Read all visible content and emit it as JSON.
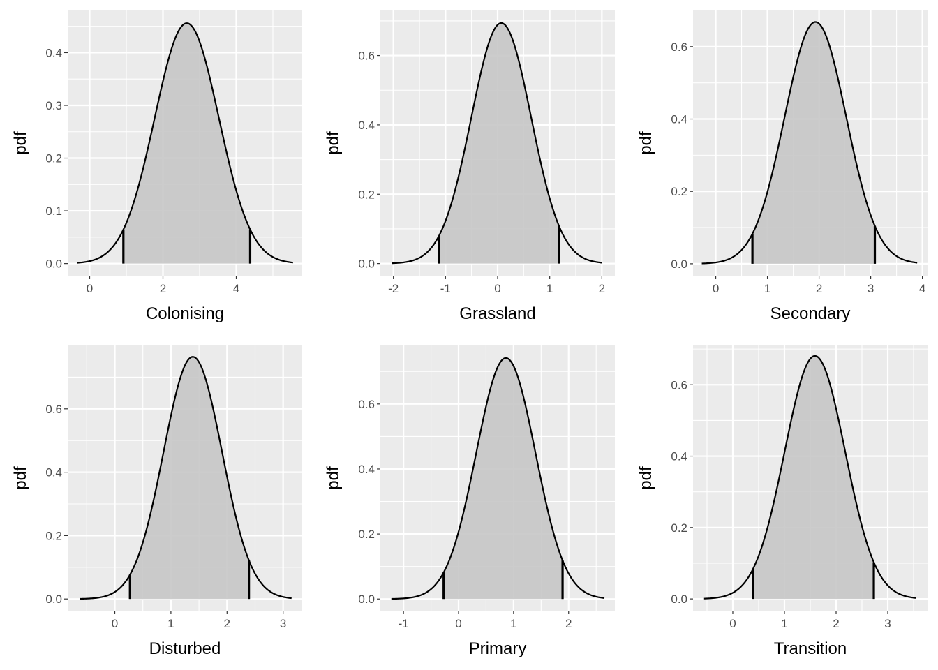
{
  "figure": {
    "panel_background": "#ebebeb",
    "grid_color": "#ffffff",
    "curve_color": "#000000",
    "fill_color": "#c6c6c6",
    "tick_text_color": "#4d4d4d"
  },
  "chart_data": [
    {
      "type": "area",
      "xlabel": "Colonising",
      "ylabel": "pdf",
      "mean": 2.65,
      "sd": 0.875,
      "ci": [
        0.92,
        4.38
      ],
      "xlim": [
        -0.6,
        5.8
      ],
      "ylim": [
        -0.023,
        0.48
      ],
      "x_ticks": [
        0,
        2,
        4
      ],
      "x_tick_labels": [
        "0",
        "2",
        "4"
      ],
      "y_ticks": [
        0.0,
        0.1,
        0.2,
        0.3,
        0.4
      ],
      "y_tick_labels": [
        "0.0",
        "0.1",
        "0.2",
        "0.3",
        "0.4"
      ],
      "curve_range": [
        -0.35,
        5.55
      ]
    },
    {
      "type": "area",
      "xlabel": "Grassland",
      "ylabel": "pdf",
      "mean": 0.07,
      "sd": 0.575,
      "ci": [
        -1.13,
        1.18
      ],
      "xlim": [
        -2.25,
        2.25
      ],
      "ylim": [
        -0.035,
        0.73
      ],
      "x_ticks": [
        -2,
        -1,
        0,
        1,
        2
      ],
      "x_tick_labels": [
        "-2",
        "-1",
        "0",
        "1",
        "2"
      ],
      "y_ticks": [
        0.0,
        0.2,
        0.4,
        0.6
      ],
      "y_tick_labels": [
        "0.0",
        "0.2",
        "0.4",
        "0.6"
      ],
      "curve_range": [
        -2.03,
        2.0
      ]
    },
    {
      "type": "area",
      "xlabel": "Secondary",
      "ylabel": "pdf",
      "mean": 1.93,
      "sd": 0.597,
      "ci": [
        0.71,
        3.08
      ],
      "xlim": [
        -0.44,
        4.1
      ],
      "ylim": [
        -0.033,
        0.7
      ],
      "x_ticks": [
        0,
        1,
        2,
        3,
        4
      ],
      "x_tick_labels": [
        "0",
        "1",
        "2",
        "3",
        "4"
      ],
      "y_ticks": [
        0.0,
        0.2,
        0.4,
        0.6
      ],
      "y_tick_labels": [
        "0.0",
        "0.2",
        "0.4",
        "0.6"
      ],
      "curve_range": [
        -0.27,
        3.9
      ]
    },
    {
      "type": "area",
      "xlabel": "Disturbed",
      "ylabel": "pdf",
      "mean": 1.39,
      "sd": 0.522,
      "ci": [
        0.27,
        2.39
      ],
      "xlim": [
        -0.84,
        3.34
      ],
      "ylim": [
        -0.037,
        0.8
      ],
      "x_ticks": [
        0,
        1,
        2,
        3
      ],
      "x_tick_labels": [
        "0",
        "1",
        "2",
        "3"
      ],
      "y_ticks": [
        0.0,
        0.2,
        0.4,
        0.6
      ],
      "y_tick_labels": [
        "0.0",
        "0.2",
        "0.4",
        "0.6"
      ],
      "curve_range": [
        -0.62,
        3.15
      ]
    },
    {
      "type": "area",
      "xlabel": "Primary",
      "ylabel": "pdf",
      "mean": 0.86,
      "sd": 0.538,
      "ci": [
        -0.27,
        1.89
      ],
      "xlim": [
        -1.42,
        2.84
      ],
      "ylim": [
        -0.036,
        0.78
      ],
      "x_ticks": [
        -1,
        0,
        1,
        2
      ],
      "x_tick_labels": [
        "-1",
        "0",
        "1",
        "2"
      ],
      "y_ticks": [
        0.0,
        0.2,
        0.4,
        0.6
      ],
      "y_tick_labels": [
        "0.0",
        "0.2",
        "0.4",
        "0.6"
      ],
      "curve_range": [
        -1.22,
        2.65
      ]
    },
    {
      "type": "area",
      "xlabel": "Transition",
      "ylabel": "pdf",
      "mean": 1.59,
      "sd": 0.586,
      "ci": [
        0.39,
        2.73
      ],
      "xlim": [
        -0.77,
        3.77
      ],
      "ylim": [
        -0.033,
        0.71
      ],
      "x_ticks": [
        0,
        1,
        2,
        3
      ],
      "x_tick_labels": [
        "0",
        "1",
        "2",
        "3"
      ],
      "y_ticks": [
        0.0,
        0.2,
        0.4,
        0.6
      ],
      "y_tick_labels": [
        "0.0",
        "0.2",
        "0.4",
        "0.6"
      ],
      "curve_range": [
        -0.57,
        3.55
      ]
    }
  ]
}
